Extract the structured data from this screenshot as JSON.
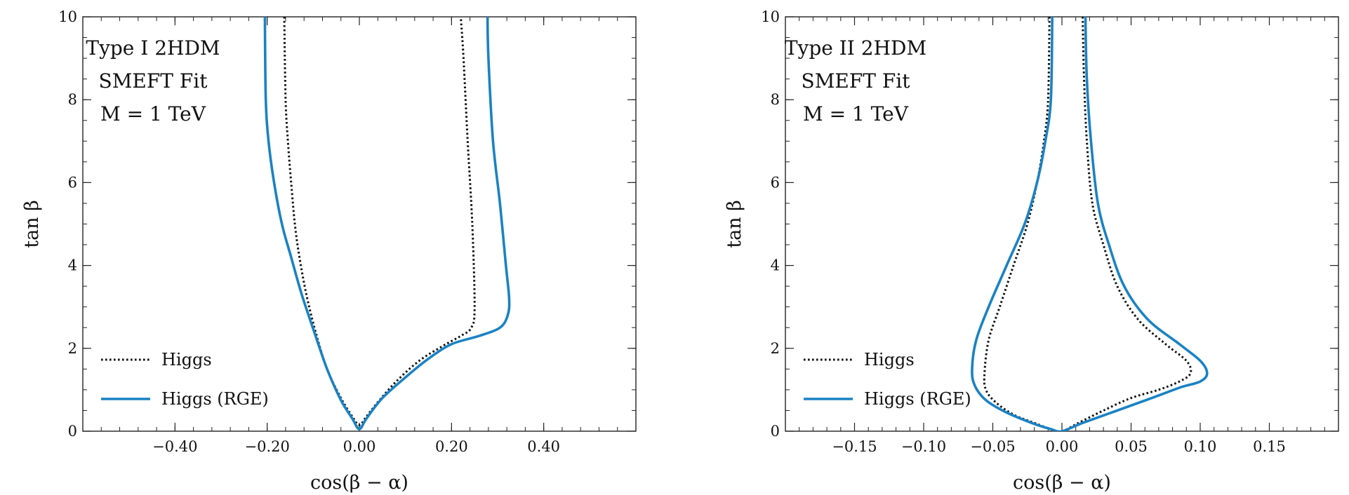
{
  "chart_data": [
    {
      "type": "line",
      "xlabel": "cos(β − α)",
      "ylabel": "tan β",
      "xlim": [
        -0.6,
        0.6
      ],
      "ylim": [
        0,
        10
      ],
      "xticks": [
        -0.4,
        -0.2,
        0.0,
        0.2,
        0.4
      ],
      "xtick_labels": [
        "−0.40",
        "−0.20",
        "0.00",
        "0.20",
        "0.40"
      ],
      "yticks": [
        0,
        2,
        4,
        6,
        8,
        10
      ],
      "ytick_labels": [
        "0",
        "2",
        "4",
        "6",
        "8",
        "10"
      ],
      "annotation_lines": [
        "Type I 2HDM",
        "SMEFT Fit",
        "M = 1 TeV"
      ],
      "legend_placement": "lower-left",
      "series": [
        {
          "name": "Higgs",
          "style": "dotted",
          "color": "#111111",
          "x": [
            -0.163,
            -0.16,
            -0.155,
            -0.148,
            -0.14,
            -0.13,
            -0.115,
            -0.095,
            -0.07,
            -0.04,
            -0.015,
            0.0,
            0.015,
            0.04,
            0.08,
            0.13,
            0.18,
            0.22,
            0.243,
            0.25,
            0.245,
            0.235,
            0.226,
            0.22
          ],
          "y": [
            10,
            8,
            7,
            6,
            5,
            4.2,
            3.3,
            2.4,
            1.5,
            0.8,
            0.35,
            0.15,
            0.35,
            0.7,
            1.2,
            1.7,
            2.05,
            2.3,
            2.5,
            3,
            5,
            7,
            9,
            10
          ]
        },
        {
          "name": "Higgs (RGE)",
          "style": "solid",
          "color": "#1a82c4",
          "x": [
            -0.205,
            -0.203,
            -0.197,
            -0.185,
            -0.168,
            -0.148,
            -0.125,
            -0.098,
            -0.07,
            -0.04,
            -0.015,
            0.0,
            0.015,
            0.05,
            0.1,
            0.15,
            0.2,
            0.26,
            0.305,
            0.322,
            0.325,
            0.318,
            0.305,
            0.29,
            0.28,
            0.278
          ],
          "y": [
            10,
            8,
            7,
            6,
            5,
            4.2,
            3.3,
            2.4,
            1.5,
            0.75,
            0.3,
            0.05,
            0.3,
            0.8,
            1.3,
            1.75,
            2.1,
            2.3,
            2.5,
            2.8,
            3.2,
            4,
            5.5,
            7,
            9,
            10
          ]
        }
      ]
    },
    {
      "type": "line",
      "xlabel": "cos(β − α)",
      "ylabel": "tan β",
      "xlim": [
        -0.2,
        0.2
      ],
      "ylim": [
        0,
        10
      ],
      "xticks": [
        -0.15,
        -0.1,
        -0.05,
        0.0,
        0.05,
        0.1,
        0.15
      ],
      "xtick_labels": [
        "−0.15",
        "−0.10",
        "−0.05",
        "0.00",
        "0.05",
        "0.10",
        "0.15"
      ],
      "yticks": [
        0,
        2,
        4,
        6,
        8,
        10
      ],
      "ytick_labels": [
        "0",
        "2",
        "4",
        "6",
        "8",
        "10"
      ],
      "annotation_lines": [
        "Type II 2HDM",
        "SMEFT Fit",
        "M = 1 TeV"
      ],
      "legend_placement": "lower-left",
      "series": [
        {
          "name": "Higgs",
          "style": "dotted",
          "color": "#111111",
          "x": [
            -0.009,
            -0.01,
            -0.013,
            -0.018,
            -0.025,
            -0.035,
            -0.045,
            -0.053,
            -0.056,
            -0.055,
            -0.048,
            -0.035,
            -0.02,
            -0.008,
            0.0,
            0.012,
            0.03,
            0.05,
            0.07,
            0.085,
            0.093,
            0.09,
            0.075,
            0.055,
            0.04,
            0.03,
            0.022,
            0.018,
            0.016,
            0.015
          ],
          "y": [
            10,
            8,
            7,
            6,
            5,
            4,
            3,
            2.2,
            1.4,
            1.0,
            0.7,
            0.4,
            0.2,
            0.05,
            0.0,
            0.2,
            0.5,
            0.8,
            1.0,
            1.2,
            1.4,
            1.7,
            2.1,
            2.7,
            3.5,
            4.5,
            5.5,
            7,
            8.5,
            10
          ]
        },
        {
          "name": "Higgs (RGE)",
          "style": "solid",
          "color": "#1a82c4",
          "x": [
            -0.007,
            -0.008,
            -0.012,
            -0.018,
            -0.027,
            -0.04,
            -0.053,
            -0.062,
            -0.065,
            -0.063,
            -0.055,
            -0.04,
            -0.022,
            -0.008,
            0.0,
            0.015,
            0.04,
            0.065,
            0.085,
            0.1,
            0.105,
            0.1,
            0.085,
            0.062,
            0.045,
            0.034,
            0.026,
            0.021,
            0.018,
            0.017
          ],
          "y": [
            10,
            8,
            7,
            6,
            5,
            4,
            3,
            2.2,
            1.5,
            1.1,
            0.75,
            0.45,
            0.2,
            0.05,
            0.0,
            0.2,
            0.5,
            0.8,
            1.05,
            1.2,
            1.4,
            1.7,
            2.1,
            2.7,
            3.5,
            4.5,
            5.5,
            7,
            8.5,
            10
          ]
        }
      ]
    }
  ]
}
